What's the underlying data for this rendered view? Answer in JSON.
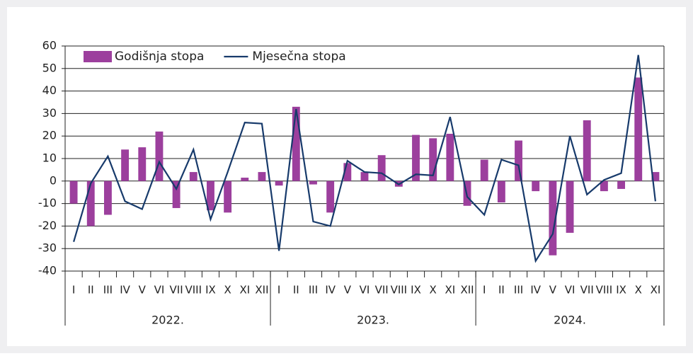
{
  "chart_data": {
    "type": "bar_line",
    "categories": [
      "I",
      "II",
      "III",
      "IV",
      "V",
      "VI",
      "VII",
      "VIII",
      "IX",
      "X",
      "XI",
      "XII",
      "I",
      "II",
      "III",
      "IV",
      "V",
      "VI",
      "VII",
      "VIII",
      "IX",
      "X",
      "XI",
      "XII",
      "I",
      "II",
      "III",
      "IV",
      "V",
      "VI",
      "VII",
      "VIII",
      "IX",
      "X",
      "XI"
    ],
    "years": [
      "2022.",
      "2023.",
      "2024."
    ],
    "series": [
      {
        "name": "Godišnja stopa",
        "type": "bar",
        "color": "#9c3f9d",
        "values": [
          -10,
          -20,
          -15,
          14,
          15,
          22,
          -12,
          4,
          -13,
          -14,
          1.5,
          4,
          -2,
          33,
          -1.5,
          -14,
          8,
          4,
          11.5,
          -2.5,
          20.5,
          19,
          21,
          -11,
          9.5,
          -9.5,
          18,
          -4.5,
          -33,
          -23,
          27,
          -4.5,
          -3.5,
          46,
          4
        ]
      },
      {
        "name": "Mjesečna stopa",
        "type": "line",
        "color": "#173a6b",
        "values": [
          -27,
          -1,
          11,
          -9,
          -12.5,
          8.5,
          -3.5,
          14,
          -17,
          4,
          26,
          25.5,
          -31,
          32,
          -18,
          -20,
          9,
          4,
          3.5,
          -1.5,
          3,
          2.5,
          28.5,
          -7,
          -15,
          9.5,
          7,
          -35.5,
          -23.5,
          20,
          -6,
          0.5,
          3.5,
          56,
          -9
        ]
      }
    ],
    "ylim": [
      -40,
      60
    ],
    "yticks": [
      -40,
      -30,
      -20,
      -10,
      0,
      10,
      20,
      30,
      40,
      50,
      60
    ],
    "grid": true
  }
}
